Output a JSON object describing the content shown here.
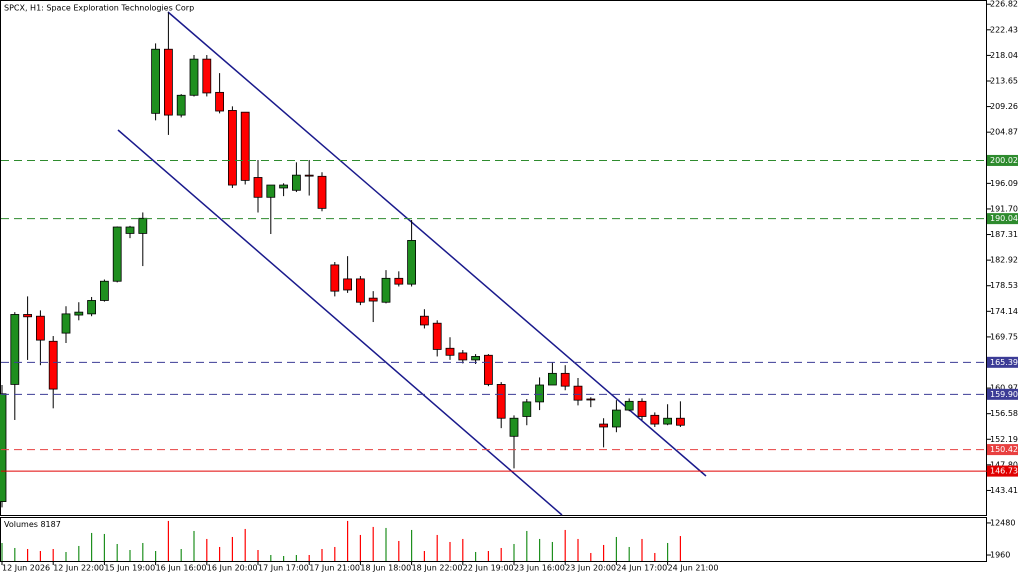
{
  "chart_data": {
    "type": "candlestick",
    "title": "SPCX, H1:  Space Exploration Technologies Corp",
    "categories": [
      "12 Jun 2026",
      null,
      null,
      null,
      "12 Jun 22:00",
      null,
      null,
      null,
      "15 Jun 19:00",
      null,
      null,
      null,
      "16 Jun 16:00",
      null,
      null,
      null,
      "16 Jun 20:00",
      null,
      null,
      null,
      "17 Jun 17:00",
      null,
      null,
      null,
      "17 Jun 21:00",
      null,
      null,
      null,
      "18 Jun 18:00",
      null,
      null,
      null,
      "18 Jun 22:00",
      null,
      null,
      null,
      "22 Jun 19:00",
      null,
      null,
      null,
      "23 Jun 16:00",
      null,
      null,
      null,
      "23 Jun 20:00",
      null,
      null,
      null,
      "24 Jun 17:00",
      null,
      null,
      null,
      "24 Jun 21:00",
      null
    ],
    "open": [
      141.5,
      161.6,
      173.6,
      173.3,
      169.0,
      170.4,
      173.5,
      173.7,
      176.0,
      179.3,
      187.5,
      187.5,
      208.1,
      219.1,
      207.8,
      211.2,
      217.4,
      211.7,
      208.6,
      208.3,
      197.1,
      193.7,
      195.3,
      194.9,
      197.5,
      197.3,
      182.1,
      179.7,
      179.7,
      176.4,
      175.7,
      179.8,
      178.8,
      173.3,
      172.1,
      167.8,
      167.0,
      165.8,
      166.6,
      161.6,
      152.7,
      156.1,
      158.6,
      161.5,
      163.5,
      161.3,
      159.1,
      154.8,
      154.3,
      157.2,
      158.7,
      156.3,
      154.8,
      155.8
    ],
    "high": [
      161.5,
      174.0,
      176.7,
      174.3,
      169.9,
      175.0,
      175.7,
      176.6,
      179.6,
      188.7,
      188.8,
      191.1,
      220.1,
      225.4,
      211.4,
      218.1,
      218.1,
      215.0,
      209.3,
      208.3,
      200.1,
      195.8,
      196.1,
      199.7,
      200.1,
      198.0,
      182.6,
      183.6,
      180.2,
      177.6,
      181.2,
      181.0,
      189.8,
      174.5,
      172.6,
      169.7,
      167.5,
      166.8,
      166.8,
      162.0,
      156.3,
      159.1,
      162.8,
      165.4,
      164.9,
      162.7,
      159.4,
      155.8,
      158.9,
      159.2,
      159.2,
      156.8,
      158.2,
      158.7
    ],
    "low": [
      140.5,
      155.5,
      165.8,
      164.9,
      157.5,
      168.7,
      172.6,
      173.3,
      175.8,
      179.1,
      186.7,
      181.9,
      206.9,
      204.4,
      207.4,
      211.0,
      211.0,
      208.1,
      195.3,
      195.9,
      191.1,
      187.4,
      193.9,
      194.6,
      194.0,
      191.3,
      176.7,
      177.3,
      175.2,
      172.3,
      175.5,
      178.4,
      178.4,
      171.2,
      166.4,
      165.8,
      165.2,
      165.1,
      161.3,
      154.1,
      147.2,
      154.6,
      157.2,
      161.5,
      160.6,
      158.0,
      157.7,
      150.8,
      153.4,
      157.0,
      155.5,
      154.3,
      154.6,
      154.3
    ],
    "close": [
      160.0,
      173.6,
      173.2,
      169.2,
      160.8,
      173.7,
      174.0,
      176.0,
      179.3,
      188.6,
      188.6,
      190.1,
      219.1,
      207.8,
      211.2,
      217.4,
      211.6,
      208.5,
      195.8,
      196.6,
      193.7,
      195.8,
      195.8,
      197.5,
      197.4,
      191.8,
      177.6,
      177.8,
      175.7,
      175.9,
      179.8,
      178.8,
      186.3,
      171.8,
      167.6,
      166.6,
      165.8,
      166.4,
      161.6,
      155.8,
      155.8,
      158.6,
      161.5,
      163.5,
      161.3,
      158.9,
      159.0,
      154.3,
      157.2,
      158.7,
      156.1,
      154.8,
      155.8,
      154.6
    ],
    "volume_label": "Volumes",
    "volume": [
      5900,
      4270,
      3940,
      3280,
      3940,
      2950,
      4930,
      9200,
      8870,
      5580,
      3610,
      5910,
      3280,
      13140,
      3940,
      9850,
      7230,
      4600,
      7880,
      10510,
      3610,
      1970,
      1640,
      1970,
      1970,
      3940,
      4600,
      13140,
      8540,
      11170,
      10840,
      6570,
      10180,
      3280,
      8540,
      6240,
      7230,
      2960,
      3280,
      4270,
      5580,
      9850,
      7230,
      6240,
      10180,
      7230,
      2630,
      5260,
      7880,
      4600,
      7230,
      2630,
      5910,
      8187
    ],
    "up_color": "#1f8f1f",
    "down_color": "#ff0000",
    "ylim": [
      139.2,
      227.2
    ],
    "yticks": [
      226.82,
      222.43,
      218.04,
      213.65,
      209.26,
      204.87,
      196.09,
      {
        "value": 191.7,
        "label": "191.70"
      },
      187.31,
      182.92,
      178.53,
      174.14,
      169.75,
      160.97,
      156.58,
      152.19,
      {
        "value": 147.8,
        "label": "147.80"
      },
      143.41
    ],
    "volume_ylim": [
      0,
      14100
    ],
    "volume_yticks": [
      12480,
      1960
    ],
    "levels": [
      {
        "value": 200.02,
        "color": "#2e8b2e",
        "dashed": true
      },
      {
        "value": 190.04,
        "color": "#2e8b2e",
        "dashed": true
      },
      {
        "value": 165.39,
        "color": "#3c3c96",
        "dashed": true
      },
      {
        "value": 159.9,
        "label": "159.90",
        "color": "#3c3c96",
        "dashed": true
      },
      {
        "value": 150.42,
        "color": "#e84040",
        "dashed": true
      },
      {
        "value": 146.73,
        "color": "#e00000",
        "dashed": false
      }
    ]
  }
}
